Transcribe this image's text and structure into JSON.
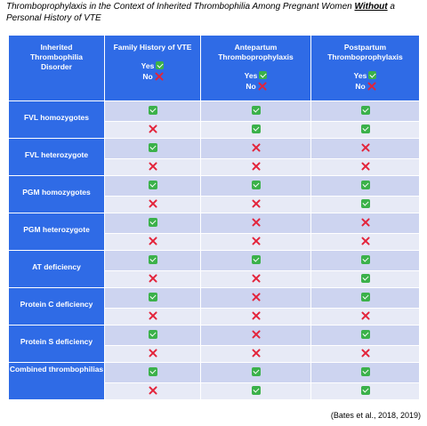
{
  "title": {
    "part1": "Thromboprophylaxis in the Context of Inherited Thrombophilia Among Pregnant Women ",
    "emph": "Without",
    "part2": " a Personal History of VTE"
  },
  "header": {
    "col0": "Inherited Thrombophilia Disorder",
    "col1": "Family History of VTE",
    "col2": "Antepartum Thromboprophylaxis",
    "col3": "Postpartum Thromboprophylaxis",
    "yes_label": "Yes",
    "no_label": "No"
  },
  "rows": [
    {
      "label": "FVL homozygotes",
      "r1": [
        "yes",
        "yes",
        "yes"
      ],
      "r2": [
        "no",
        "yes",
        "yes"
      ]
    },
    {
      "label": "FVL heterozygote",
      "r1": [
        "yes",
        "no",
        "no"
      ],
      "r2": [
        "no",
        "no",
        "no"
      ]
    },
    {
      "label": "PGM homozygotes",
      "r1": [
        "yes",
        "yes",
        "yes"
      ],
      "r2": [
        "no",
        "no",
        "yes"
      ]
    },
    {
      "label": "PGM heterozygote",
      "r1": [
        "yes",
        "no",
        "no"
      ],
      "r2": [
        "no",
        "no",
        "no"
      ]
    },
    {
      "label": "AT deficiency",
      "r1": [
        "yes",
        "yes",
        "yes"
      ],
      "r2": [
        "no",
        "no",
        "yes"
      ]
    },
    {
      "label": "Protein C deficiency",
      "r1": [
        "yes",
        "no",
        "yes"
      ],
      "r2": [
        "no",
        "no",
        "no"
      ]
    },
    {
      "label": "Protein S deficiency",
      "r1": [
        "yes",
        "no",
        "yes"
      ],
      "r2": [
        "no",
        "no",
        "no"
      ]
    },
    {
      "label": "Combined thrombophilias",
      "r1": [
        "yes",
        "yes",
        "yes"
      ],
      "r2": [
        "no",
        "yes",
        "yes"
      ]
    }
  ],
  "icons": {
    "yes": "green-check-icon",
    "no": "red-x-icon"
  },
  "colors": {
    "header_blue": "#2f6be6",
    "row_dark": "#cdd4f0",
    "row_light": "#e7eaf6",
    "check_green": "#3bb14a",
    "x_red": "#e3243b"
  },
  "citation": "(Bates et al., 2018, 2019)"
}
